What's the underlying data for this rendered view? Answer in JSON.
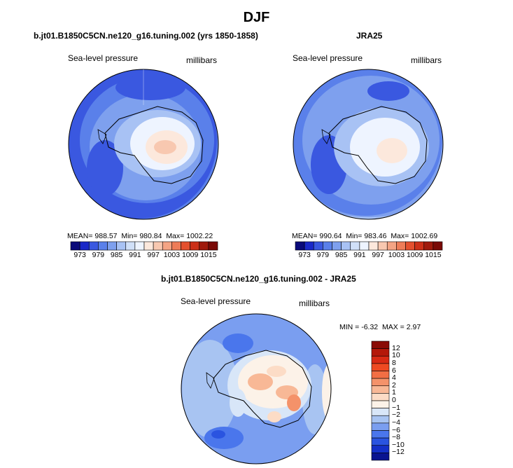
{
  "title": "DJF",
  "chart_data": [
    {
      "type": "heatmap",
      "panel": "model",
      "title": "b.jt01.B1850C5CN.ne120_g16.tuning.002 (yrs 1850-1858)",
      "variable": "Sea-level pressure",
      "units": "millibars",
      "stats": {
        "mean_label": "MEAN=",
        "mean": "988.57",
        "min_label": "Min=",
        "min": "980.84",
        "max_label": "Max=",
        "max": "1002.22"
      },
      "colorbar": {
        "levels": [
          970,
          973,
          976,
          979,
          982,
          985,
          988,
          991,
          994,
          997,
          1000,
          1003,
          1006,
          1009,
          1012,
          1015,
          1018
        ],
        "tick_labels": [
          "973",
          "979",
          "985",
          "991",
          "997",
          "1003",
          "1009",
          "1015"
        ],
        "colors": [
          "#0a0a7a",
          "#1a28c8",
          "#3a58e0",
          "#5a80ea",
          "#7ea0ee",
          "#a8c2f4",
          "#d0e0f8",
          "#eef4ff",
          "#fce8dc",
          "#f8c8b0",
          "#f4a484",
          "#ee7c58",
          "#e4502e",
          "#cc3018",
          "#a01a0c",
          "#7a0a06"
        ]
      },
      "map_description": "South polar stereographic, Antarctica centered"
    },
    {
      "type": "heatmap",
      "panel": "obs",
      "title": "JRA25",
      "variable": "Sea-level pressure",
      "units": "millibars",
      "stats": {
        "mean_label": "MEAN=",
        "mean": "990.64",
        "min_label": "Min=",
        "min": "983.46",
        "max_label": "Max=",
        "max": "1002.69"
      },
      "colorbar": {
        "levels": [
          970,
          973,
          976,
          979,
          982,
          985,
          988,
          991,
          994,
          997,
          1000,
          1003,
          1006,
          1009,
          1012,
          1015,
          1018
        ],
        "tick_labels": [
          "973",
          "979",
          "985",
          "991",
          "997",
          "1003",
          "1009",
          "1015"
        ],
        "colors": [
          "#0a0a7a",
          "#1a28c8",
          "#3a58e0",
          "#5a80ea",
          "#7ea0ee",
          "#a8c2f4",
          "#d0e0f8",
          "#eef4ff",
          "#fce8dc",
          "#f8c8b0",
          "#f4a484",
          "#ee7c58",
          "#e4502e",
          "#cc3018",
          "#a01a0c",
          "#7a0a06"
        ]
      }
    },
    {
      "type": "heatmap",
      "panel": "difference",
      "title": "b.jt01.B1850C5CN.ne120_g16.tuning.002 - JRA25",
      "variable": "Sea-level pressure",
      "units": "millibars",
      "stats": {
        "min_label": "MIN =",
        "min": "-6.32",
        "max_label": "MAX =",
        "max": "2.97"
      },
      "colorbar": {
        "orientation": "vertical",
        "tick_labels": [
          "12",
          "10",
          "8",
          "6",
          "4",
          "2",
          "1",
          "0",
          "−1",
          "−2",
          "−4",
          "−6",
          "−8",
          "−10",
          "−12"
        ],
        "colors": [
          "#8a0c06",
          "#b4180a",
          "#d82a14",
          "#ee4a22",
          "#f26e44",
          "#f4926a",
          "#f8b896",
          "#fcdcc6",
          "#fcf2e8",
          "#d8e6f8",
          "#a8c4f2",
          "#7a9ef0",
          "#4a76ec",
          "#2a54e0",
          "#1430c8",
          "#0a1490"
        ]
      }
    }
  ]
}
